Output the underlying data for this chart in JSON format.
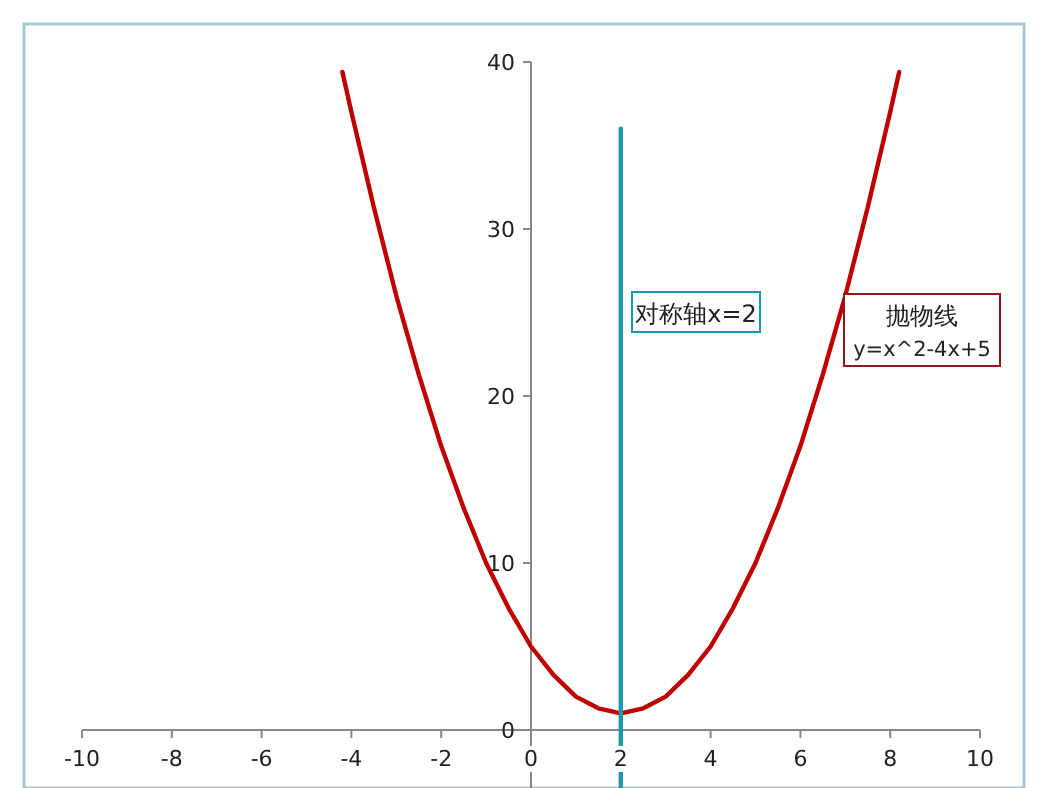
{
  "chart_data": {
    "type": "line",
    "x": [
      -4.2,
      -4,
      -3.5,
      -3,
      -2.5,
      -2,
      -1.5,
      -1,
      -0.5,
      0,
      0.5,
      1,
      1.5,
      2,
      2.5,
      3,
      3.5,
      4,
      4.5,
      5,
      5.5,
      6,
      6.5,
      7,
      7.5,
      8,
      8.2
    ],
    "series": [
      {
        "color": "#c00000",
        "values": [
          39.4,
          37,
          31.3,
          26,
          21.3,
          17,
          13.3,
          10,
          7.3,
          5,
          3.3,
          2,
          1.3,
          1,
          1.3,
          2,
          3.3,
          5,
          7.3,
          10,
          13.3,
          17,
          21.3,
          26,
          31.3,
          37,
          39.4
        ]
      },
      {
        "color": "#1a9aa8",
        "x": [
          2,
          2
        ],
        "values": [
          -3.5,
          36
        ]
      }
    ],
    "annotations": [
      "对称轴x=2",
      "抛物线\ny=x^2-4x+5"
    ],
    "xlim": [
      -10,
      10
    ],
    "ylim": [
      -3.5,
      40
    ],
    "xticks": [
      -10,
      -8,
      -6,
      -4,
      -2,
      0,
      2,
      4,
      6,
      8,
      10
    ],
    "yticks": [
      0,
      10,
      20,
      30,
      40
    ],
    "marker": "none",
    "line_style": "solid",
    "grid": false
  }
}
